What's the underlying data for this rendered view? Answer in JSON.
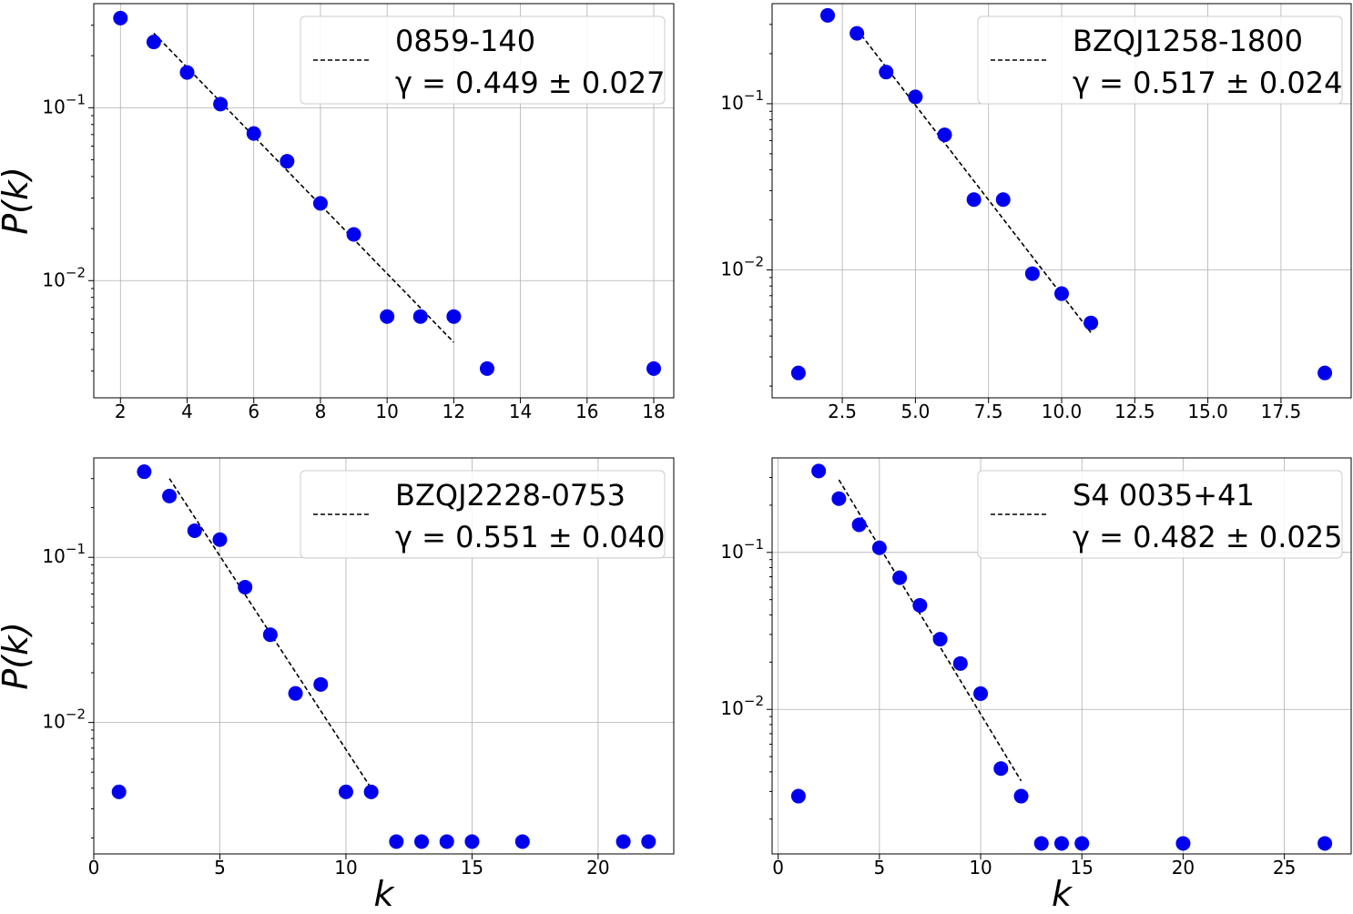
{
  "y_axis_label": "P(k)",
  "x_axis_label": "k",
  "colors": {
    "marker": "#0000ee",
    "fit": "#000000",
    "grid": "#b0b0b0"
  },
  "chart_data": [
    {
      "type": "scatter",
      "legend_title": "0859-140",
      "legend_fit": "γ = 0.449 ± 0.027",
      "legend_position": "upper right",
      "x_scale": "linear",
      "y_scale": "log",
      "xlim": [
        1.2,
        18.6
      ],
      "ylim": [
        0.0021,
        0.4
      ],
      "xticks": [
        2,
        4,
        6,
        8,
        10,
        12,
        14,
        16,
        18
      ],
      "xtick_labels": [
        "2",
        "4",
        "6",
        "8",
        "10",
        "12",
        "14",
        "16",
        "18"
      ],
      "yticks": [
        0.1,
        0.01
      ],
      "ytick_labels": [
        "10^-1",
        "10^-2"
      ],
      "grid": true,
      "points": {
        "x": [
          2,
          3,
          4,
          5,
          6,
          7,
          8,
          9,
          10,
          11,
          12,
          13,
          18
        ],
        "y": [
          0.33,
          0.24,
          0.16,
          0.105,
          0.071,
          0.049,
          0.028,
          0.0185,
          0.0062,
          0.0062,
          0.0062,
          0.0031,
          0.0031
        ]
      },
      "fit": {
        "x": [
          3,
          12
        ],
        "y": [
          0.27,
          0.0044
        ]
      }
    },
    {
      "type": "scatter",
      "legend_title": "BZQJ1258-1800",
      "legend_fit": "γ = 0.517 ± 0.024",
      "legend_position": "upper right",
      "x_scale": "linear",
      "y_scale": "log",
      "xlim": [
        0.1,
        19.9
      ],
      "ylim": [
        0.0017,
        0.4
      ],
      "xticks": [
        2.5,
        5.0,
        7.5,
        10.0,
        12.5,
        15.0,
        17.5
      ],
      "xtick_labels": [
        "2.5",
        "5.0",
        "7.5",
        "10.0",
        "12.5",
        "15.0",
        "17.5"
      ],
      "yticks": [
        0.1,
        0.01
      ],
      "ytick_labels": [
        "10^-1",
        "10^-2"
      ],
      "grid": true,
      "points": {
        "x": [
          1,
          2,
          3,
          4,
          5,
          6,
          7,
          8,
          9,
          10,
          11,
          19
        ],
        "y": [
          0.0024,
          0.34,
          0.265,
          0.155,
          0.11,
          0.065,
          0.0265,
          0.0265,
          0.0095,
          0.0072,
          0.0048,
          0.0024
        ]
      },
      "fit": {
        "x": [
          3,
          11
        ],
        "y": [
          0.28,
          0.0042
        ]
      }
    },
    {
      "type": "scatter",
      "legend_title": "BZQJ2228-0753",
      "legend_fit": "γ = 0.551 ± 0.040",
      "legend_position": "upper right",
      "x_scale": "linear",
      "y_scale": "log",
      "xlim": [
        0,
        23
      ],
      "ylim": [
        0.0016,
        0.4
      ],
      "xticks": [
        0,
        5,
        10,
        15,
        20
      ],
      "xtick_labels": [
        "0",
        "5",
        "10",
        "15",
        "20"
      ],
      "yticks": [
        0.1,
        0.01
      ],
      "ytick_labels": [
        "10^-1",
        "10^-2"
      ],
      "grid": true,
      "points": {
        "x": [
          1,
          2,
          3,
          4,
          5,
          6,
          7,
          8,
          9,
          10,
          11,
          12,
          13,
          14,
          15,
          17,
          21,
          22
        ],
        "y": [
          0.0038,
          0.33,
          0.235,
          0.145,
          0.128,
          0.066,
          0.034,
          0.015,
          0.017,
          0.0038,
          0.0038,
          0.0019,
          0.0019,
          0.0019,
          0.0019,
          0.0019,
          0.0019,
          0.0019
        ]
      },
      "fit": {
        "x": [
          3,
          11
        ],
        "y": [
          0.3,
          0.004
        ]
      }
    },
    {
      "type": "scatter",
      "legend_title": "S4 0035+41",
      "legend_fit": "γ = 0.482 ± 0.025",
      "legend_position": "upper right",
      "x_scale": "linear",
      "y_scale": "log",
      "xlim": [
        -0.3,
        28.3
      ],
      "ylim": [
        0.0012,
        0.4
      ],
      "xticks": [
        0,
        5,
        10,
        15,
        20,
        25
      ],
      "xtick_labels": [
        "0",
        "5",
        "10",
        "15",
        "20",
        "25"
      ],
      "yticks": [
        0.1,
        0.01
      ],
      "ytick_labels": [
        "10^-1",
        "10^-2"
      ],
      "grid": true,
      "points": {
        "x": [
          1,
          2,
          3,
          4,
          5,
          6,
          7,
          8,
          9,
          10,
          11,
          12,
          13,
          14,
          15,
          20,
          27
        ],
        "y": [
          0.0028,
          0.33,
          0.22,
          0.15,
          0.107,
          0.069,
          0.046,
          0.028,
          0.0196,
          0.0126,
          0.0042,
          0.0028,
          0.0014,
          0.0014,
          0.0014,
          0.0014,
          0.0014
        ]
      },
      "fit": {
        "x": [
          3,
          12
        ],
        "y": [
          0.29,
          0.0035
        ]
      }
    }
  ]
}
